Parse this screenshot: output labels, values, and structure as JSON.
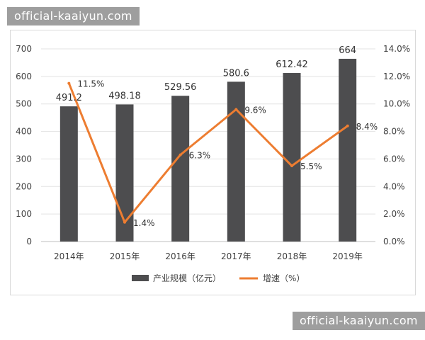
{
  "watermarks": {
    "top": "official-kaaiyun.com",
    "bottom": "official-kaaiyun.com"
  },
  "chart_data": {
    "type": "bar",
    "categories": [
      "2014年",
      "2015年",
      "2016年",
      "2017年",
      "2018年",
      "2019年"
    ],
    "series": [
      {
        "name": "产业规模（亿元）",
        "type": "bar",
        "axis": "left",
        "color": "#4d4d4f",
        "values": [
          491.2,
          498.18,
          529.56,
          580.6,
          612.42,
          664
        ],
        "labels": [
          "491.2",
          "498.18",
          "529.56",
          "580.6",
          "612.42",
          "664"
        ]
      },
      {
        "name": "增速（%）",
        "type": "line",
        "axis": "right",
        "color": "#ed7d31",
        "values": [
          11.5,
          1.4,
          6.3,
          9.6,
          5.5,
          8.4
        ],
        "labels": [
          "11.5%",
          "1.4%",
          "6.3%",
          "9.6%",
          "5.5%",
          "8.4%"
        ]
      }
    ],
    "y_left": {
      "min": 0,
      "max": 700,
      "ticks": [
        "0",
        "100",
        "200",
        "300",
        "400",
        "500",
        "600",
        "700"
      ]
    },
    "y_right": {
      "min": 0,
      "max": 14,
      "ticks": [
        "0.0%",
        "2.0%",
        "4.0%",
        "6.0%",
        "8.0%",
        "10.0%",
        "12.0%",
        "14.0%"
      ]
    },
    "grid": true,
    "legend": "bottom"
  }
}
